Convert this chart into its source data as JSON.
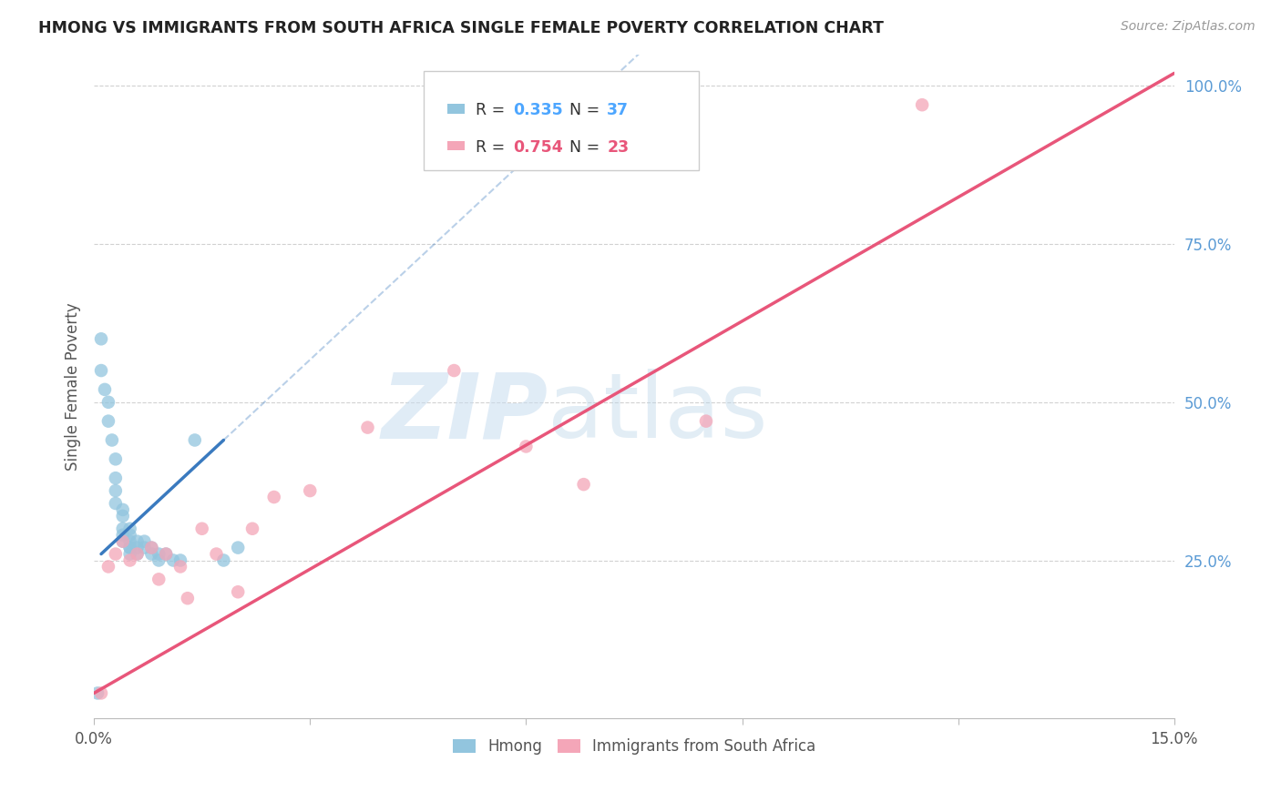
{
  "title": "HMONG VS IMMIGRANTS FROM SOUTH AFRICA SINGLE FEMALE POVERTY CORRELATION CHART",
  "source": "Source: ZipAtlas.com",
  "ylabel": "Single Female Poverty",
  "xlim": [
    0.0,
    0.15
  ],
  "ylim": [
    0.0,
    1.05
  ],
  "blue_color": "#92c5de",
  "pink_color": "#f4a6b8",
  "blue_line_color": "#3a7abf",
  "pink_line_color": "#e8567a",
  "grid_color": "#cccccc",
  "hmong_x": [
    0.0005,
    0.001,
    0.001,
    0.0015,
    0.002,
    0.002,
    0.0025,
    0.003,
    0.003,
    0.003,
    0.003,
    0.004,
    0.004,
    0.004,
    0.004,
    0.004,
    0.005,
    0.005,
    0.005,
    0.005,
    0.005,
    0.005,
    0.006,
    0.006,
    0.006,
    0.007,
    0.007,
    0.008,
    0.008,
    0.009,
    0.009,
    0.01,
    0.011,
    0.012,
    0.014,
    0.018,
    0.02
  ],
  "hmong_y": [
    0.04,
    0.55,
    0.6,
    0.52,
    0.5,
    0.47,
    0.44,
    0.41,
    0.38,
    0.36,
    0.34,
    0.33,
    0.32,
    0.3,
    0.29,
    0.28,
    0.3,
    0.29,
    0.28,
    0.27,
    0.27,
    0.26,
    0.28,
    0.27,
    0.26,
    0.28,
    0.27,
    0.27,
    0.26,
    0.26,
    0.25,
    0.26,
    0.25,
    0.25,
    0.44,
    0.25,
    0.27
  ],
  "sa_x": [
    0.001,
    0.002,
    0.003,
    0.004,
    0.005,
    0.006,
    0.008,
    0.009,
    0.01,
    0.012,
    0.013,
    0.015,
    0.017,
    0.02,
    0.022,
    0.025,
    0.03,
    0.038,
    0.05,
    0.06,
    0.068,
    0.085,
    0.115
  ],
  "sa_y": [
    0.04,
    0.24,
    0.26,
    0.28,
    0.25,
    0.26,
    0.27,
    0.22,
    0.26,
    0.24,
    0.19,
    0.3,
    0.26,
    0.2,
    0.3,
    0.35,
    0.36,
    0.46,
    0.55,
    0.43,
    0.37,
    0.47,
    0.97
  ],
  "blue_trendline_x": [
    0.0005,
    0.018
  ],
  "blue_trendline_y_intercept": 0.23,
  "blue_trendline_slope": 8.0,
  "pink_trendline_x0": 0.0,
  "pink_trendline_y0": 0.04,
  "pink_trendline_x1": 0.15,
  "pink_trendline_y1": 1.02,
  "legend_r1": "0.335",
  "legend_n1": "37",
  "legend_r2": "0.754",
  "legend_n2": "23"
}
